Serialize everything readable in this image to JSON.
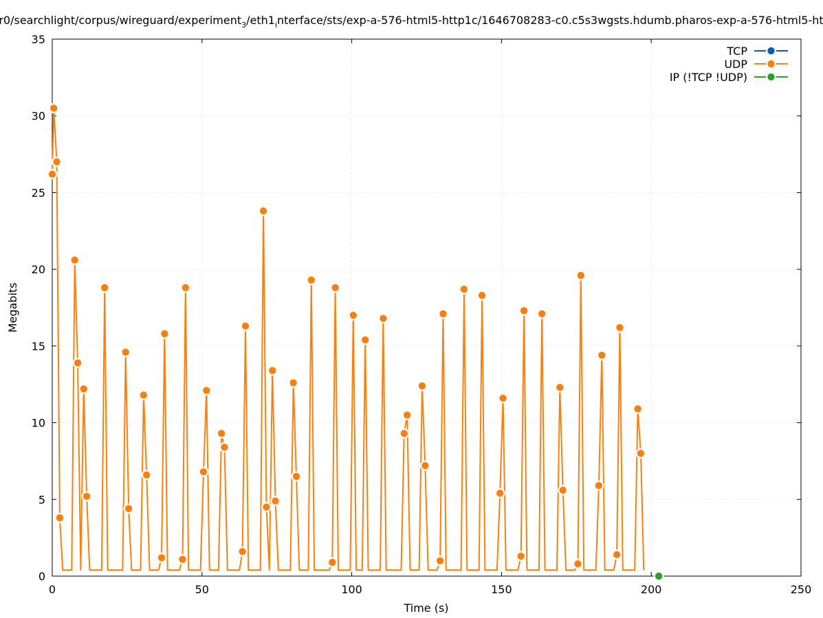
{
  "chart_data": {
    "type": "line",
    "title": "r0/searchlight/corpus/wireguard/experiment",
    "title_sub": "3",
    "title_mid": "/eth1",
    "title_sub2": "i",
    "title_rest": "nterface/sts/exp-a-576-html5-http1c/1646708283-c0.c5s3wgsts.hdumb.pharos-exp-a-576-html5-ht",
    "xlabel": "Time (s)",
    "ylabel": "Megabits",
    "xlim": [
      0,
      250
    ],
    "ylim": [
      0,
      35
    ],
    "xticks": [
      0,
      50,
      100,
      150,
      200,
      250
    ],
    "yticks": [
      0,
      5,
      10,
      15,
      20,
      25,
      30,
      35
    ],
    "grid": true,
    "legend_position": "top-right",
    "series": [
      {
        "name": "TCP",
        "color": "#0060ad",
        "x": [],
        "y": []
      },
      {
        "name": "UDP",
        "color": "#ff7f0e",
        "x": [
          0,
          0.5,
          1.5,
          2.5,
          3.5,
          6.5,
          7.5,
          8.5,
          9.5,
          10.5,
          11.5,
          12.5,
          16.5,
          17.5,
          18.5,
          23.5,
          24.5,
          25.5,
          26.5,
          29.5,
          30.5,
          31.5,
          32.5,
          35.5,
          36.5,
          37.5,
          38.5,
          42.5,
          43.5,
          44.5,
          45.5,
          49.5,
          50.5,
          51.5,
          52.5,
          55.5,
          56.5,
          57.5,
          58.5,
          62.5,
          63.5,
          64.5,
          65.5,
          69.5,
          70.5,
          71.5,
          72.5,
          73.5,
          74.5,
          75.5,
          79.5,
          80.5,
          81.5,
          82.5,
          85.5,
          86.5,
          87.5,
          92.5,
          93.5,
          94.5,
          95.5,
          99.5,
          100.5,
          101.5,
          103.5,
          104.5,
          105.5,
          109.5,
          110.5,
          111.5,
          116.5,
          117.5,
          118.5,
          119.5,
          122.5,
          123.5,
          124.5,
          125.5,
          128.5,
          129.5,
          130.5,
          131.5,
          136.5,
          137.5,
          138.5,
          142.5,
          143.5,
          144.5,
          148.5,
          149.5,
          150.5,
          151.5,
          155.5,
          156.5,
          157.5,
          158.5,
          162.5,
          163.5,
          164.5,
          168.5,
          169.5,
          170.5,
          171.5,
          174.5,
          175.5,
          176.5,
          177.5,
          181.5,
          182.5,
          183.5,
          184.5,
          187.5,
          188.5,
          189.5,
          190.5,
          194.5,
          195.5,
          196.5,
          197.5
        ],
        "y": [
          26.2,
          30.5,
          27.0,
          3.8,
          0.4,
          0.4,
          20.6,
          13.9,
          0.4,
          12.2,
          5.2,
          0.4,
          0.4,
          18.8,
          0.4,
          0.4,
          14.6,
          4.4,
          0.4,
          0.4,
          11.8,
          6.6,
          0.4,
          0.4,
          1.2,
          15.8,
          0.4,
          0.4,
          1.1,
          18.8,
          0.4,
          0.4,
          6.8,
          12.1,
          0.4,
          0.4,
          9.3,
          8.4,
          0.4,
          0.4,
          1.6,
          16.3,
          0.4,
          0.4,
          23.8,
          4.5,
          0.4,
          13.4,
          4.9,
          0.4,
          0.4,
          12.6,
          6.5,
          0.4,
          0.4,
          19.3,
          0.4,
          0.4,
          0.9,
          18.8,
          0.4,
          0.4,
          17.0,
          0.4,
          0.4,
          15.4,
          0.4,
          0.4,
          16.8,
          0.4,
          0.4,
          9.3,
          10.5,
          0.4,
          0.4,
          12.4,
          7.2,
          0.4,
          0.4,
          1.0,
          17.1,
          0.4,
          0.4,
          18.7,
          0.4,
          0.4,
          18.3,
          0.4,
          0.4,
          5.4,
          11.6,
          0.4,
          0.4,
          1.3,
          17.3,
          0.4,
          0.4,
          17.1,
          0.4,
          0.4,
          12.3,
          5.6,
          0.4,
          0.4,
          0.8,
          19.6,
          0.4,
          0.4,
          5.9,
          14.4,
          0.4,
          0.4,
          1.4,
          16.2,
          0.4,
          0.4,
          10.9,
          8.0,
          0.4
        ],
        "markers_x": [
          0,
          0.5,
          1.5,
          2.5,
          7.5,
          8.5,
          10.5,
          11.5,
          17.5,
          24.5,
          25.5,
          30.5,
          31.5,
          36.5,
          37.5,
          43.5,
          44.5,
          50.5,
          51.5,
          56.5,
          57.5,
          63.5,
          64.5,
          70.5,
          71.5,
          73.5,
          74.5,
          80.5,
          81.5,
          86.5,
          93.5,
          94.5,
          100.5,
          104.5,
          110.5,
          117.5,
          118.5,
          123.5,
          124.5,
          129.5,
          130.5,
          137.5,
          143.5,
          149.5,
          150.5,
          156.5,
          157.5,
          163.5,
          169.5,
          170.5,
          175.5,
          176.5,
          182.5,
          183.5,
          188.5,
          189.5,
          195.5,
          196.5
        ],
        "markers_y": [
          26.2,
          30.5,
          27.0,
          3.8,
          20.6,
          13.9,
          12.2,
          5.2,
          18.8,
          14.6,
          4.4,
          11.8,
          6.6,
          1.2,
          15.8,
          1.1,
          18.8,
          6.8,
          12.1,
          9.3,
          8.4,
          1.6,
          16.3,
          23.8,
          4.5,
          13.4,
          4.9,
          12.6,
          6.5,
          19.3,
          0.9,
          18.8,
          17.0,
          15.4,
          16.8,
          9.3,
          10.5,
          12.4,
          7.2,
          1.0,
          17.1,
          18.7,
          18.3,
          5.4,
          11.6,
          1.3,
          17.3,
          17.1,
          12.3,
          5.6,
          0.8,
          19.6,
          5.9,
          14.4,
          1.4,
          16.2,
          10.9,
          8.0
        ]
      },
      {
        "name": "IP (!TCP  !UDP)",
        "color": "#2ca02c",
        "x": [
          202.5
        ],
        "y": [
          0
        ]
      }
    ]
  }
}
